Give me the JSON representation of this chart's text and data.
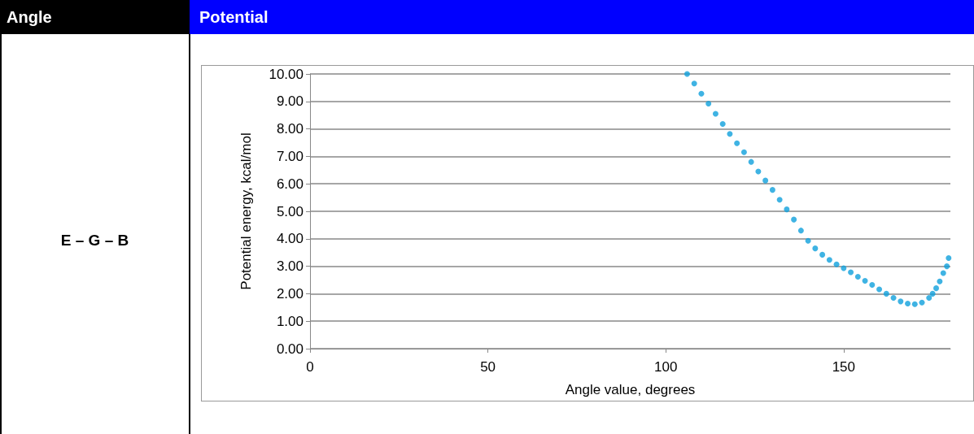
{
  "chart_data": {
    "type": "scatter",
    "annotations": [
      "Angle",
      "Potential",
      "E – G – B"
    ],
    "xlabel": "Angle value, degrees",
    "ylabel": "Potential energy, kcal/mol",
    "x": [
      106,
      108,
      110,
      112,
      114,
      116,
      118,
      120,
      122,
      124,
      126,
      128,
      130,
      132,
      134,
      136,
      138,
      140,
      142,
      144,
      146,
      148,
      150,
      152,
      154,
      156,
      158,
      160,
      162,
      164,
      166,
      168,
      170,
      172,
      174,
      175,
      176,
      177,
      178,
      179,
      179.5
    ],
    "series": [
      {
        "color": "#0fa0dc",
        "values": [
          10.0,
          9.65,
          9.28,
          8.92,
          8.55,
          8.18,
          7.82,
          7.48,
          7.15,
          6.8,
          6.45,
          6.12,
          5.78,
          5.42,
          5.07,
          4.7,
          4.3,
          3.93,
          3.65,
          3.42,
          3.23,
          3.07,
          2.93,
          2.78,
          2.62,
          2.47,
          2.32,
          2.16,
          2.0,
          1.85,
          1.72,
          1.64,
          1.62,
          1.68,
          1.85,
          2.0,
          2.2,
          2.45,
          2.75,
          3.0,
          3.3
        ]
      }
    ],
    "xlim": [
      0,
      180
    ],
    "xticks": [
      0,
      50,
      100,
      150
    ],
    "ylim": [
      0,
      10
    ],
    "yticks": [
      {
        "value": 0,
        "label": "0.00"
      },
      {
        "value": 1,
        "label": "1.00"
      },
      {
        "value": 2,
        "label": "2.00"
      },
      {
        "value": 3,
        "label": "3.00"
      },
      {
        "value": 4,
        "label": "4.00"
      },
      {
        "value": 5,
        "label": "5.00"
      },
      {
        "value": 6,
        "label": "6.00"
      },
      {
        "value": 7,
        "label": "7.00"
      },
      {
        "value": 8,
        "label": "8.00"
      },
      {
        "value": 9,
        "label": "9.00"
      },
      {
        "value": 10,
        "label": "10.00"
      }
    ],
    "grid": "y",
    "marker": "circle"
  }
}
